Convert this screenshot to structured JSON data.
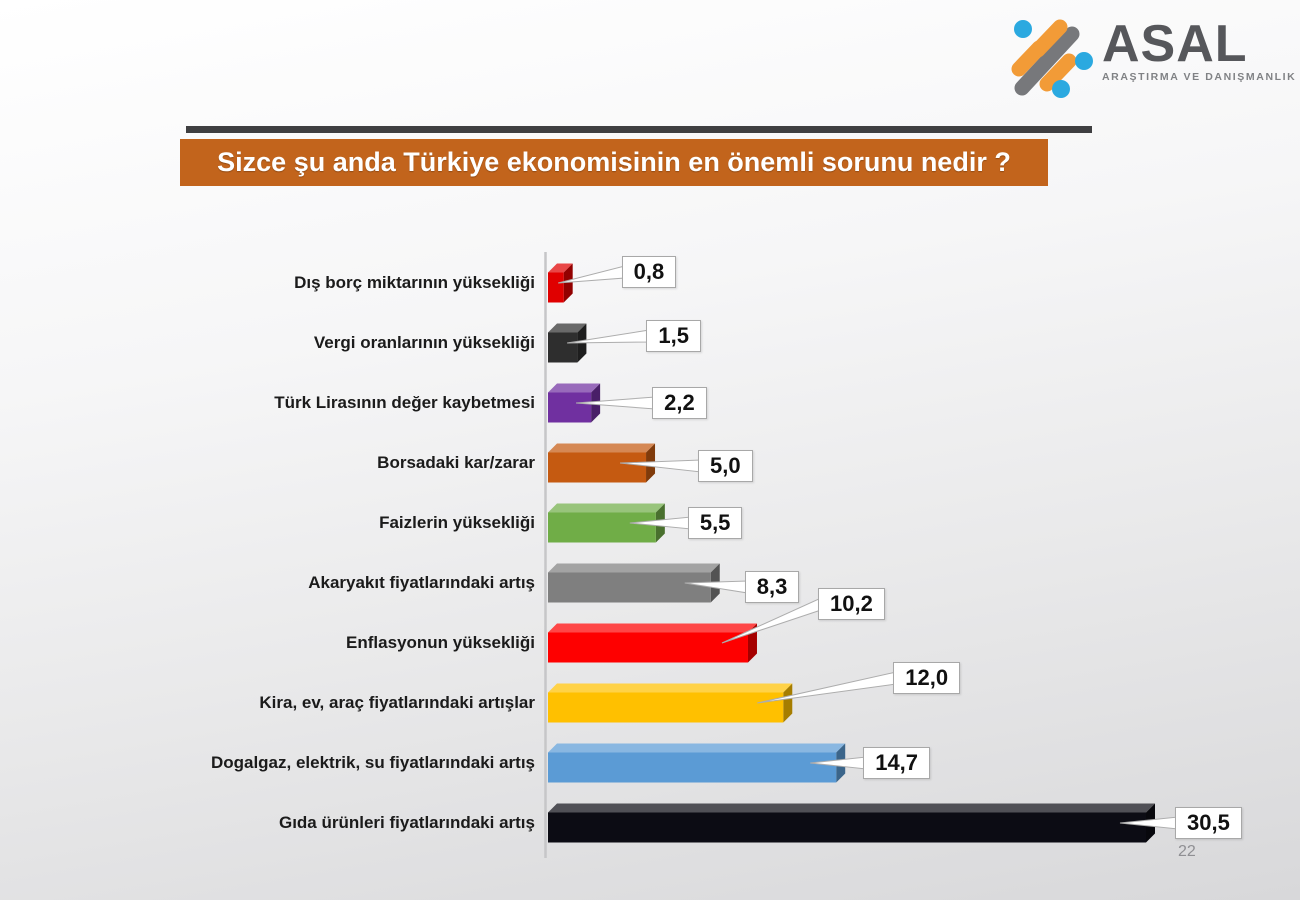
{
  "logo": {
    "name": "ASAL",
    "subtitle": "ARAŞTIRMA VE DANIŞMANLIK",
    "colors": {
      "orange": "#F29B37",
      "gray": "#77787B",
      "blue": "#2BA9E0",
      "text": "#56575B"
    }
  },
  "title": {
    "text": "Sizce şu anda Türkiye ekonomisinin en önemli sorunu nedir ?",
    "bg_color": "#C2641C",
    "text_color": "#FFFFFF"
  },
  "page": {
    "number": "22"
  },
  "chart_data": {
    "type": "bar",
    "orientation": "horizontal",
    "style": "3d",
    "grid": false,
    "legend": false,
    "xlim": [
      0,
      33
    ],
    "categories": [
      "Dış borç miktarının yüksekliği",
      "Vergi oranlarının yüksekliği",
      "Türk Lirasının değer kaybetmesi",
      "Borsadaki kar/zarar",
      "Faizlerin yüksekliği",
      "Akaryakıt fiyatlarındaki artış",
      "Enflasyonun yüksekliği",
      "Kira, ev, araç fiyatlarındaki artışlar",
      "Dogalgaz, elektrik, su fiyatlarındaki artış",
      "Gıda ürünleri fiyatlarındaki artış"
    ],
    "values": [
      0.8,
      1.5,
      2.2,
      5.0,
      5.5,
      8.3,
      10.2,
      12.0,
      14.7,
      30.5
    ],
    "value_labels": [
      "0,8",
      "1,5",
      "2,2",
      "5,0",
      "5,5",
      "8,3",
      "10,2",
      "12,0",
      "14,7",
      "30,5"
    ],
    "bar_colors": [
      "#E00000",
      "#2E2E2E",
      "#7030A0",
      "#C55A11",
      "#70AD47",
      "#7F7F7F",
      "#FE0000",
      "#FFC000",
      "#5B9BD5",
      "#0C0C14"
    ],
    "callout_layout": {
      "gaps": [
        49,
        60,
        52,
        43,
        23,
        25,
        61,
        101,
        18,
        20
      ],
      "dys": [
        -11,
        -7,
        0,
        3,
        0,
        4,
        -39,
        -25,
        0,
        0
      ]
    }
  }
}
